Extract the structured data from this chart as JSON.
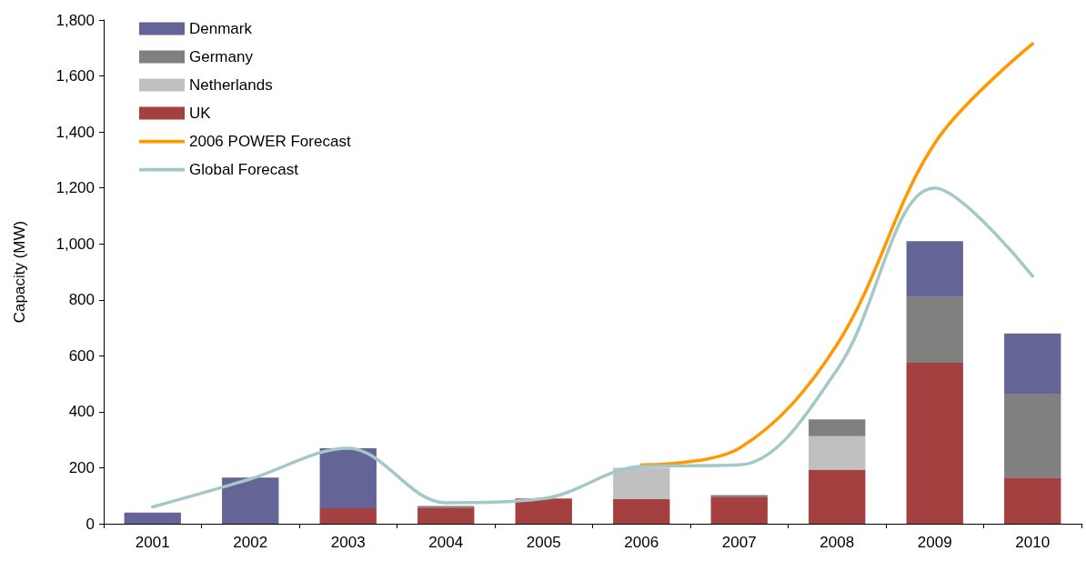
{
  "chart_data": {
    "type": "bar",
    "ylabel": "Capacity (MW)",
    "categories": [
      "2001",
      "2002",
      "2003",
      "2004",
      "2005",
      "2006",
      "2007",
      "2008",
      "2009",
      "2010"
    ],
    "stacked": true,
    "legend": "top left",
    "grid": false,
    "ylim": [
      0,
      1800
    ],
    "yticks": [
      0,
      200,
      400,
      600,
      800,
      {
        "value": 1000,
        "label": "1,000"
      },
      {
        "value": 1200,
        "label": "1,200"
      },
      {
        "value": 1400,
        "label": "1,400"
      },
      {
        "value": 1600,
        "label": "1,600"
      },
      {
        "value": 1800,
        "label": "1,800"
      }
    ],
    "series": [
      {
        "name": "UK",
        "color": "#a54040",
        "values": [
          0,
          0,
          55,
          58,
          90,
          88,
          97,
          193,
          575,
          165
        ]
      },
      {
        "name": "Netherlands",
        "color": "#c0c0c0",
        "values": [
          0,
          0,
          0,
          0,
          0,
          112,
          0,
          120,
          0,
          0
        ]
      },
      {
        "name": "Germany",
        "color": "#808080",
        "values": [
          0,
          0,
          0,
          5,
          0,
          0,
          5,
          60,
          235,
          300
        ]
      },
      {
        "name": "Denmark",
        "color": "#646497",
        "values": [
          40,
          165,
          215,
          0,
          0,
          0,
          0,
          0,
          200,
          215
        ]
      },
      {
        "name": "2006 POWER Forecast",
        "type": "line",
        "color": "#ff9900",
        "marker": "none",
        "line_style": "solid",
        "values": [
          null,
          null,
          null,
          null,
          null,
          210,
          270,
          640,
          1360,
          1715
        ]
      },
      {
        "name": "Global Forecast",
        "type": "line",
        "color": "#a2c8c8",
        "marker": "none",
        "line_style": "solid",
        "values": [
          60,
          160,
          270,
          75,
          90,
          205,
          210,
          550,
          1200,
          885
        ]
      }
    ]
  }
}
